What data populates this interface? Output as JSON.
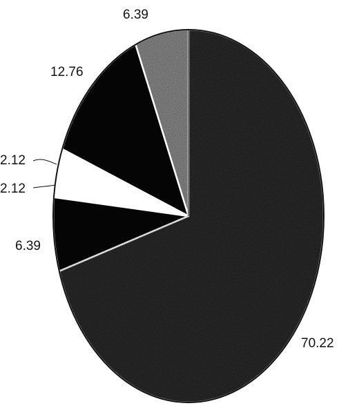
{
  "chart_data": {
    "type": "pie",
    "title": "",
    "labels_shown": [
      "6.39",
      "12.76",
      "2.12",
      "2.12",
      "6.39",
      "70.22"
    ],
    "values": [
      6.39,
      12.76,
      2.12,
      2.12,
      6.39,
      70.22
    ],
    "colors": [
      "#8a8a8a",
      "#050505",
      "#ffffff",
      "#ffffff",
      "#050505",
      "#2a2a2a"
    ],
    "slice_fill_pattern": [
      "speckle",
      "solid",
      "solid",
      "solid",
      "solid",
      "speckle-dark"
    ],
    "legend": "none",
    "start_angle": "top (12 o'clock)",
    "direction": "counterclockwise"
  }
}
